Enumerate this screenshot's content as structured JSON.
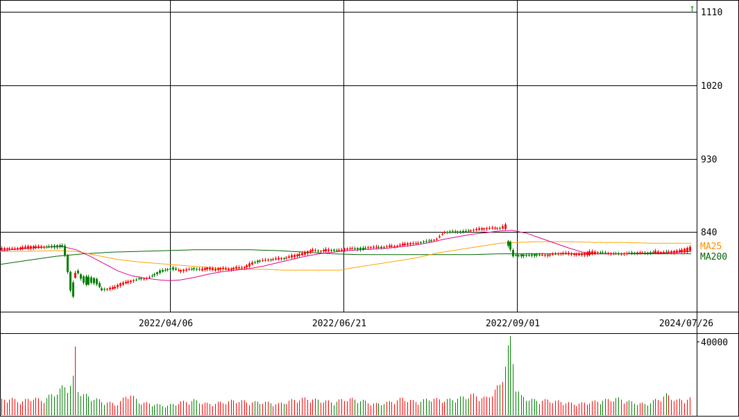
{
  "chart_data": [
    {
      "type": "candlestick",
      "y_ticks": [
        "1110",
        "1020",
        "930",
        "840"
      ],
      "ylim": [
        750,
        1117
      ],
      "x_ticks": [
        "2022/04/06",
        "2022/06/21",
        "2022/09/01",
        "2024/07/26"
      ],
      "legend": [
        {
          "label": "MA25",
          "color": "#ff8c00"
        },
        {
          "label": "MA200",
          "color": "#006400"
        }
      ],
      "colors": {
        "up": "#ff0000",
        "down": "#008000",
        "ma_short": "#e0008c",
        "ma25": "#ffa500",
        "ma200": "#006400",
        "grid": "#000000"
      },
      "price_anchors": [
        [
          0,
          818,
          820
        ],
        [
          20,
          820,
          819
        ],
        [
          40,
          820,
          822
        ],
        [
          60,
          821,
          822
        ],
        [
          80,
          823,
          821
        ],
        [
          90,
          823,
          822
        ],
        [
          95,
          822,
          805
        ],
        [
          100,
          793,
          770
        ],
        [
          105,
          776,
          760
        ],
        [
          108,
          782,
          790
        ],
        [
          112,
          792,
          790
        ],
        [
          118,
          785,
          779
        ],
        [
          125,
          785,
          774
        ],
        [
          132,
          784,
          778
        ],
        [
          140,
          782,
          775
        ],
        [
          146,
          771,
          768
        ],
        [
          152,
          770,
          769
        ],
        [
          158,
          770,
          771
        ],
        [
          165,
          771,
          772
        ],
        [
          172,
          774,
          776
        ],
        [
          180,
          777,
          778
        ],
        [
          190,
          779,
          780
        ],
        [
          200,
          783,
          782
        ],
        [
          210,
          782,
          783
        ],
        [
          220,
          786,
          786
        ],
        [
          230,
          792,
          790
        ],
        [
          240,
          793,
          794
        ],
        [
          250,
          796,
          794
        ],
        [
          260,
          791,
          793
        ],
        [
          270,
          793,
          794
        ],
        [
          280,
          796,
          794
        ],
        [
          290,
          793,
          794
        ],
        [
          300,
          795,
          796
        ],
        [
          310,
          793,
          794
        ],
        [
          320,
          795,
          796
        ],
        [
          330,
          793,
          794
        ],
        [
          340,
          795,
          797
        ],
        [
          350,
          795,
          796
        ],
        [
          360,
          797,
          802
        ],
        [
          365,
          801,
          803
        ],
        [
          370,
          804,
          803
        ],
        [
          380,
          804,
          806
        ],
        [
          390,
          806,
          806
        ],
        [
          400,
          806,
          808
        ],
        [
          410,
          808,
          807
        ],
        [
          420,
          809,
          811
        ],
        [
          430,
          811,
          812
        ],
        [
          440,
          813,
          815
        ],
        [
          450,
          817,
          818
        ],
        [
          460,
          817,
          816
        ],
        [
          470,
          816,
          819
        ],
        [
          480,
          818,
          817
        ],
        [
          490,
          816,
          818
        ],
        [
          500,
          818,
          820
        ],
        [
          510,
          819,
          820
        ],
        [
          520,
          820,
          818
        ],
        [
          530,
          820,
          821
        ],
        [
          540,
          821,
          822
        ],
        [
          550,
          822,
          820
        ],
        [
          560,
          822,
          823
        ],
        [
          570,
          823,
          822
        ],
        [
          580,
          824,
          825
        ],
        [
          590,
          825,
          826
        ],
        [
          600,
          826,
          826
        ],
        [
          610,
          828,
          828
        ],
        [
          620,
          829,
          829
        ],
        [
          630,
          830,
          832
        ],
        [
          635,
          835,
          837
        ],
        [
          640,
          839,
          840
        ],
        [
          650,
          840,
          840
        ],
        [
          660,
          840,
          840
        ],
        [
          670,
          841,
          840
        ],
        [
          680,
          842,
          842
        ],
        [
          690,
          843,
          844
        ],
        [
          700,
          844,
          844
        ],
        [
          710,
          845,
          845
        ],
        [
          720,
          845,
          844
        ],
        [
          728,
          844,
          849
        ],
        [
          732,
          827,
          820
        ],
        [
          736,
          828,
          818
        ],
        [
          740,
          815,
          808
        ],
        [
          744,
          810,
          812
        ],
        [
          750,
          812,
          810
        ],
        [
          760,
          811,
          811
        ],
        [
          770,
          812,
          811
        ],
        [
          780,
          811,
          812
        ],
        [
          790,
          810,
          812
        ],
        [
          800,
          813,
          813
        ],
        [
          810,
          813,
          814
        ],
        [
          820,
          813,
          814
        ],
        [
          830,
          812,
          812
        ],
        [
          840,
          812,
          813
        ],
        [
          850,
          812,
          816
        ],
        [
          860,
          815,
          815
        ],
        [
          870,
          815,
          814
        ],
        [
          880,
          813,
          814
        ],
        [
          890,
          813,
          813
        ],
        [
          900,
          812,
          814
        ],
        [
          910,
          814,
          814
        ],
        [
          920,
          813,
          815
        ],
        [
          930,
          814,
          814
        ],
        [
          940,
          815,
          814
        ],
        [
          945,
          814,
          817
        ],
        [
          950,
          815,
          815
        ],
        [
          960,
          816,
          815
        ],
        [
          970,
          815,
          816
        ],
        [
          980,
          816,
          817
        ],
        [
          990,
          816,
          820
        ],
        [
          996,
          818,
          822
        ]
      ],
      "ma_short": [
        [
          0,
          817
        ],
        [
          30,
          819
        ],
        [
          60,
          821
        ],
        [
          90,
          822
        ],
        [
          110,
          818
        ],
        [
          130,
          810
        ],
        [
          150,
          801
        ],
        [
          170,
          792
        ],
        [
          190,
          786
        ],
        [
          210,
          783
        ],
        [
          230,
          781
        ],
        [
          245,
          780
        ],
        [
          260,
          781
        ],
        [
          280,
          784
        ],
        [
          300,
          788
        ],
        [
          320,
          791
        ],
        [
          340,
          793
        ],
        [
          360,
          795
        ],
        [
          380,
          798
        ],
        [
          400,
          802
        ],
        [
          420,
          806
        ],
        [
          440,
          810
        ],
        [
          460,
          813
        ],
        [
          480,
          815
        ],
        [
          500,
          817
        ],
        [
          520,
          818
        ],
        [
          540,
          819
        ],
        [
          560,
          820
        ],
        [
          580,
          822
        ],
        [
          600,
          824
        ],
        [
          620,
          827
        ],
        [
          640,
          831
        ],
        [
          660,
          834
        ],
        [
          680,
          837
        ],
        [
          700,
          839
        ],
        [
          720,
          841
        ],
        [
          738,
          842
        ],
        [
          760,
          838
        ],
        [
          780,
          832
        ],
        [
          800,
          826
        ],
        [
          820,
          820
        ],
        [
          840,
          815
        ],
        [
          860,
          813
        ],
        [
          880,
          813
        ],
        [
          900,
          813
        ],
        [
          920,
          814
        ],
        [
          940,
          814
        ],
        [
          960,
          814
        ],
        [
          980,
          815
        ],
        [
          996,
          816
        ]
      ],
      "ma25": [
        [
          0,
          816
        ],
        [
          40,
          816
        ],
        [
          80,
          817
        ],
        [
          110,
          816
        ],
        [
          140,
          811
        ],
        [
          170,
          806
        ],
        [
          200,
          803
        ],
        [
          230,
          801
        ],
        [
          260,
          799
        ],
        [
          290,
          797
        ],
        [
          320,
          795
        ],
        [
          350,
          794
        ],
        [
          380,
          794
        ],
        [
          410,
          793
        ],
        [
          440,
          793
        ],
        [
          470,
          793
        ],
        [
          490,
          793
        ],
        [
          510,
          796
        ],
        [
          540,
          800
        ],
        [
          570,
          804
        ],
        [
          600,
          808
        ],
        [
          630,
          814
        ],
        [
          660,
          818
        ],
        [
          690,
          822
        ],
        [
          720,
          826
        ],
        [
          745,
          827
        ],
        [
          780,
          828
        ],
        [
          820,
          828
        ],
        [
          860,
          827
        ],
        [
          900,
          827
        ],
        [
          940,
          826
        ],
        [
          980,
          826
        ],
        [
          996,
          826
        ]
      ],
      "ma200": [
        [
          0,
          800
        ],
        [
          40,
          805
        ],
        [
          80,
          810
        ],
        [
          120,
          813
        ],
        [
          160,
          815
        ],
        [
          200,
          816
        ],
        [
          240,
          817
        ],
        [
          280,
          818
        ],
        [
          320,
          818
        ],
        [
          360,
          818
        ],
        [
          400,
          817
        ],
        [
          440,
          815
        ],
        [
          480,
          813
        ],
        [
          520,
          812
        ],
        [
          560,
          812
        ],
        [
          600,
          812
        ],
        [
          640,
          812
        ],
        [
          680,
          812
        ],
        [
          720,
          813
        ],
        [
          760,
          813
        ],
        [
          800,
          813
        ],
        [
          840,
          813
        ],
        [
          880,
          813
        ],
        [
          920,
          813
        ],
        [
          960,
          813
        ],
        [
          996,
          813
        ]
      ],
      "last_price_marker": 1112
    },
    {
      "type": "bar",
      "y_ticks": [
        "40000"
      ],
      "ylim": [
        0,
        43000
      ],
      "volume_anchors": [
        [
          0,
          8000
        ],
        [
          15,
          9000
        ],
        [
          30,
          7000
        ],
        [
          45,
          9500
        ],
        [
          60,
          8000
        ],
        [
          75,
          11000
        ],
        [
          90,
          15000
        ],
        [
          100,
          16000
        ],
        [
          105,
          20000
        ],
        [
          110,
          42000
        ],
        [
          112,
          14000
        ],
        [
          120,
          11000
        ],
        [
          135,
          9000
        ],
        [
          150,
          7000
        ],
        [
          170,
          6000
        ],
        [
          185,
          12000
        ],
        [
          200,
          7000
        ],
        [
          220,
          6000
        ],
        [
          240,
          5000
        ],
        [
          260,
          7000
        ],
        [
          280,
          8000
        ],
        [
          300,
          6000
        ],
        [
          320,
          7000
        ],
        [
          340,
          8000
        ],
        [
          360,
          7000
        ],
        [
          380,
          7000
        ],
        [
          400,
          6000
        ],
        [
          420,
          8000
        ],
        [
          440,
          9000
        ],
        [
          460,
          8000
        ],
        [
          480,
          7000
        ],
        [
          500,
          9000
        ],
        [
          520,
          8000
        ],
        [
          540,
          6000
        ],
        [
          560,
          7000
        ],
        [
          580,
          9000
        ],
        [
          600,
          7000
        ],
        [
          620,
          9000
        ],
        [
          640,
          8000
        ],
        [
          660,
          9000
        ],
        [
          680,
          11000
        ],
        [
          700,
          9000
        ],
        [
          720,
          16000
        ],
        [
          730,
          32000
        ],
        [
          736,
          44000
        ],
        [
          742,
          17000
        ],
        [
          750,
          10000
        ],
        [
          770,
          8000
        ],
        [
          790,
          8000
        ],
        [
          810,
          7000
        ],
        [
          830,
          6000
        ],
        [
          850,
          7000
        ],
        [
          870,
          8000
        ],
        [
          890,
          9000
        ],
        [
          910,
          7000
        ],
        [
          930,
          6000
        ],
        [
          950,
          9000
        ],
        [
          960,
          11000
        ],
        [
          975,
          8000
        ],
        [
          996,
          9000
        ]
      ]
    }
  ]
}
